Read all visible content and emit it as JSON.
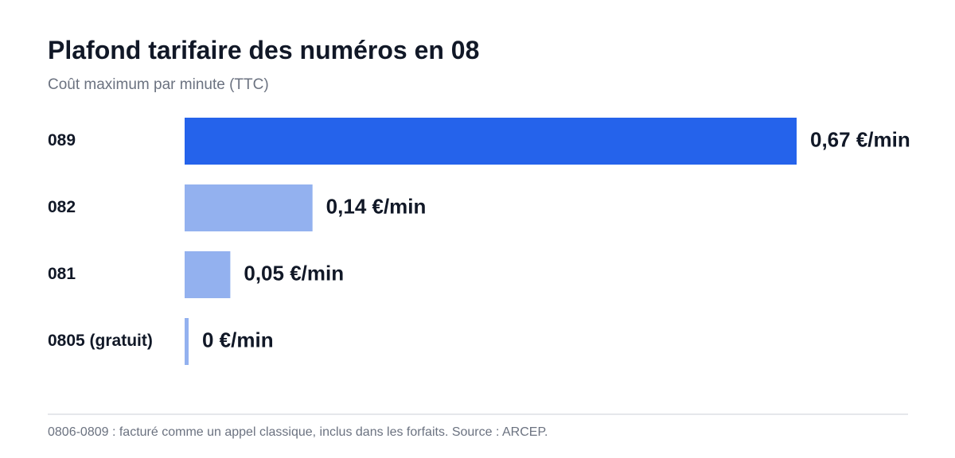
{
  "chart_data": {
    "type": "bar",
    "orientation": "horizontal",
    "title": "Plafond tarifaire des numéros en 08",
    "subtitle": "Coût maximum par minute (TTC)",
    "categories": [
      "089",
      "082",
      "081",
      "0805 (gratuit)"
    ],
    "values": [
      0.67,
      0.14,
      0.05,
      0
    ],
    "value_labels": [
      "0,67 €/min",
      "0,14 €/min",
      "0,05 €/min",
      "0 €/min"
    ],
    "unit": "€/min",
    "xlim": [
      0,
      0.67
    ],
    "grid": false,
    "legend": "none",
    "colors": {
      "highlight": "#2563eb",
      "default": "#93b1ef",
      "category_label": "#111827",
      "value_label": "#111827"
    }
  },
  "footnote": "0806-0809 : facturé comme un appel classique, inclus dans les forfaits. Source : ARCEP."
}
